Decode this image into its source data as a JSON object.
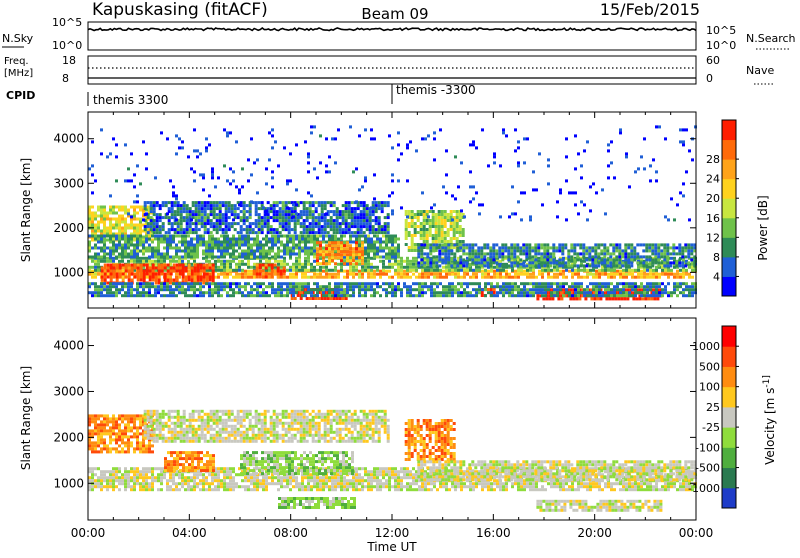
{
  "header": {
    "station": "Kapuskasing (fitACF)",
    "beam": "Beam 09",
    "date": "15/Feb/2015"
  },
  "noise_panel": {
    "left_label": "N.Sky",
    "right_label": "N.Search",
    "left_ticks": [
      "10^5",
      "10^0"
    ],
    "right_ticks": [
      "10^5",
      "10^0"
    ]
  },
  "freq_panel": {
    "left_label_line1": "Freq.",
    "left_label_line2": "[MHz]",
    "right_label": "Nave",
    "left_ticks": [
      "18",
      "8"
    ],
    "right_ticks": [
      "60",
      "0"
    ]
  },
  "cpid_panel": {
    "label": "CPID",
    "segments": [
      {
        "text": "themis 3300",
        "start": "00:00"
      },
      {
        "text": "themis -3300",
        "start": "12:00"
      }
    ]
  },
  "time_axis": {
    "label": "Time UT",
    "ticks": [
      "00:00",
      "04:00",
      "08:00",
      "12:00",
      "16:00",
      "20:00",
      "00:00"
    ]
  },
  "chart_data": [
    {
      "type": "heatmap",
      "name": "power",
      "ylabel": "Slant Range [km]",
      "yticks": [
        1000,
        2000,
        3000,
        4000
      ],
      "ylim": [
        200,
        4600
      ],
      "xlim_hours": [
        0,
        24
      ],
      "colorbar": {
        "label": "Power [dB]",
        "ticks": [
          "4",
          "8",
          "12",
          "16",
          "20",
          "24",
          "28"
        ],
        "colors": [
          "#0000ff",
          "#1f5fd6",
          "#2e8b57",
          "#6fc24a",
          "#c8e640",
          "#ffd21e",
          "#ffa31a",
          "#ff6a0a",
          "#ff1e00"
        ]
      },
      "echo_regions": [
        {
          "x": [
            0.0,
            2.6
          ],
          "y": [
            1700,
            2500
          ],
          "level": 0.55
        },
        {
          "x": [
            0.0,
            24.0
          ],
          "y": [
            860,
            1060
          ],
          "level": 0.7
        },
        {
          "x": [
            0.0,
            24.0
          ],
          "y": [
            1060,
            1350
          ],
          "level": 0.35
        },
        {
          "x": [
            0.0,
            12.2
          ],
          "y": [
            1350,
            1850
          ],
          "level": 0.3
        },
        {
          "x": [
            2.2,
            11.8
          ],
          "y": [
            1900,
            2600
          ],
          "level": 0.2
        },
        {
          "x": [
            0.5,
            5.0
          ],
          "y": [
            780,
            1200
          ],
          "level": 0.9
        },
        {
          "x": [
            6.5,
            7.8
          ],
          "y": [
            900,
            1200
          ],
          "level": 0.85
        },
        {
          "x": [
            8.0,
            10.2
          ],
          "y": [
            400,
            650
          ],
          "level": 0.95
        },
        {
          "x": [
            9.0,
            10.8
          ],
          "y": [
            1200,
            1700
          ],
          "level": 0.75
        },
        {
          "x": [
            12.5,
            14.8
          ],
          "y": [
            1500,
            2400
          ],
          "level": 0.45
        },
        {
          "x": [
            13.0,
            24.0
          ],
          "y": [
            1150,
            1650
          ],
          "level": 0.25
        },
        {
          "x": [
            17.7,
            22.6
          ],
          "y": [
            380,
            640
          ],
          "level": 1.0
        },
        {
          "x": [
            15.5,
            16.0
          ],
          "y": [
            450,
            650
          ],
          "level": 0.95
        },
        {
          "x": [
            0.0,
            24.0
          ],
          "y": [
            500,
            780
          ],
          "level": 0.25
        },
        {
          "x": [
            0.0,
            24.0
          ],
          "y": [
            2200,
            4300
          ],
          "level": 0.08
        }
      ]
    },
    {
      "type": "heatmap",
      "name": "velocity",
      "ylabel": "Slant Range [km]",
      "yticks": [
        1000,
        2000,
        3000,
        4000
      ],
      "ylim": [
        200,
        4600
      ],
      "xlim_hours": [
        0,
        24
      ],
      "colorbar": {
        "label": "Velocity [m s^-1]",
        "ticks": [
          "1000",
          "500",
          "100",
          "25",
          "-25",
          "-100",
          "-500",
          "-1000"
        ],
        "colors": [
          "#1e3cc8",
          "#2a7a50",
          "#4fae3e",
          "#8fdc3c",
          "#c8c8c0",
          "#ffc81e",
          "#ff8c10",
          "#ff4a0a",
          "#ff0000"
        ]
      },
      "echo_regions": [
        {
          "x": [
            0.0,
            2.6
          ],
          "y": [
            1700,
            2500
          ],
          "level": "orange"
        },
        {
          "x": [
            0.0,
            24.0
          ],
          "y": [
            860,
            1350
          ],
          "level": "gray"
        },
        {
          "x": [
            2.2,
            11.8
          ],
          "y": [
            1900,
            2600
          ],
          "level": "gray"
        },
        {
          "x": [
            6.0,
            10.5
          ],
          "y": [
            1200,
            1700
          ],
          "level": "green"
        },
        {
          "x": [
            3.0,
            5.0
          ],
          "y": [
            1300,
            1700
          ],
          "level": "orange"
        },
        {
          "x": [
            12.5,
            14.5
          ],
          "y": [
            1500,
            2400
          ],
          "level": "orange"
        },
        {
          "x": [
            13.0,
            24.0
          ],
          "y": [
            1100,
            1500
          ],
          "level": "gray"
        },
        {
          "x": [
            17.7,
            22.6
          ],
          "y": [
            380,
            640
          ],
          "level": "gray"
        },
        {
          "x": [
            7.5,
            10.5
          ],
          "y": [
            450,
            700
          ],
          "level": "green"
        }
      ]
    }
  ]
}
